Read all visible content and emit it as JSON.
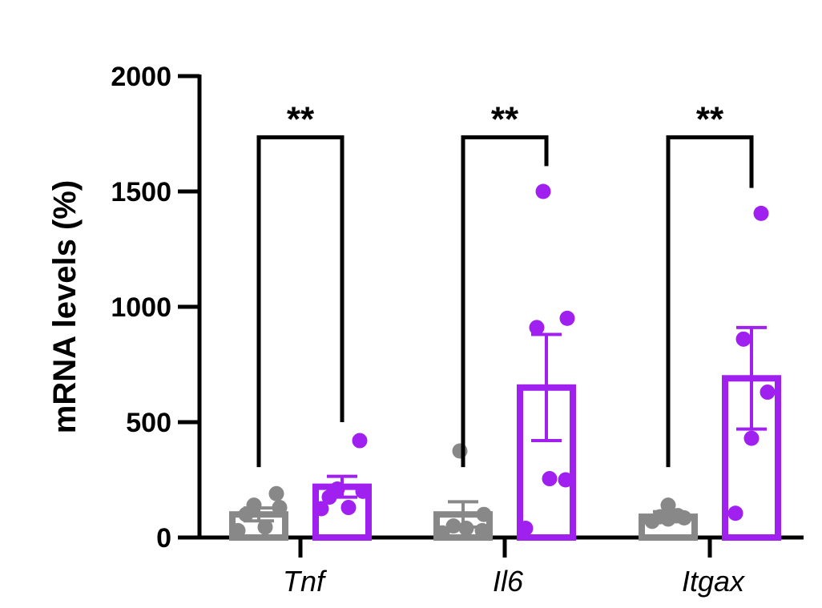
{
  "chart_data": {
    "type": "bar",
    "ylabel": "mRNA levels (%)",
    "xlabel": "",
    "ylim": [
      0,
      2000
    ],
    "yticks": [
      0,
      500,
      1000,
      1500,
      2000
    ],
    "categories": [
      "Tnf",
      "Il6",
      "Itgax"
    ],
    "series": [
      {
        "color": "#888888",
        "values": [
          100,
          100,
          90
        ],
        "error": [
          28,
          55,
          22
        ],
        "points": [
          [
            30,
            45,
            100,
            130,
            140,
            190
          ],
          [
            20,
            30,
            40,
            50,
            100,
            375
          ],
          [
            70,
            80,
            85,
            90,
            95,
            140
          ]
        ]
      },
      {
        "color": "#A020F0",
        "values": [
          220,
          650,
          690
        ],
        "error": [
          45,
          230,
          220
        ],
        "points": [
          [
            125,
            130,
            175,
            200,
            210,
            420
          ],
          [
            40,
            250,
            255,
            910,
            950,
            1500
          ],
          [
            105,
            430,
            630,
            860,
            1405
          ]
        ]
      }
    ],
    "annotations": [
      {
        "category": "Tnf",
        "label": "**"
      },
      {
        "category": "Il6",
        "label": "**"
      },
      {
        "category": "Itgax",
        "label": "**"
      }
    ]
  }
}
